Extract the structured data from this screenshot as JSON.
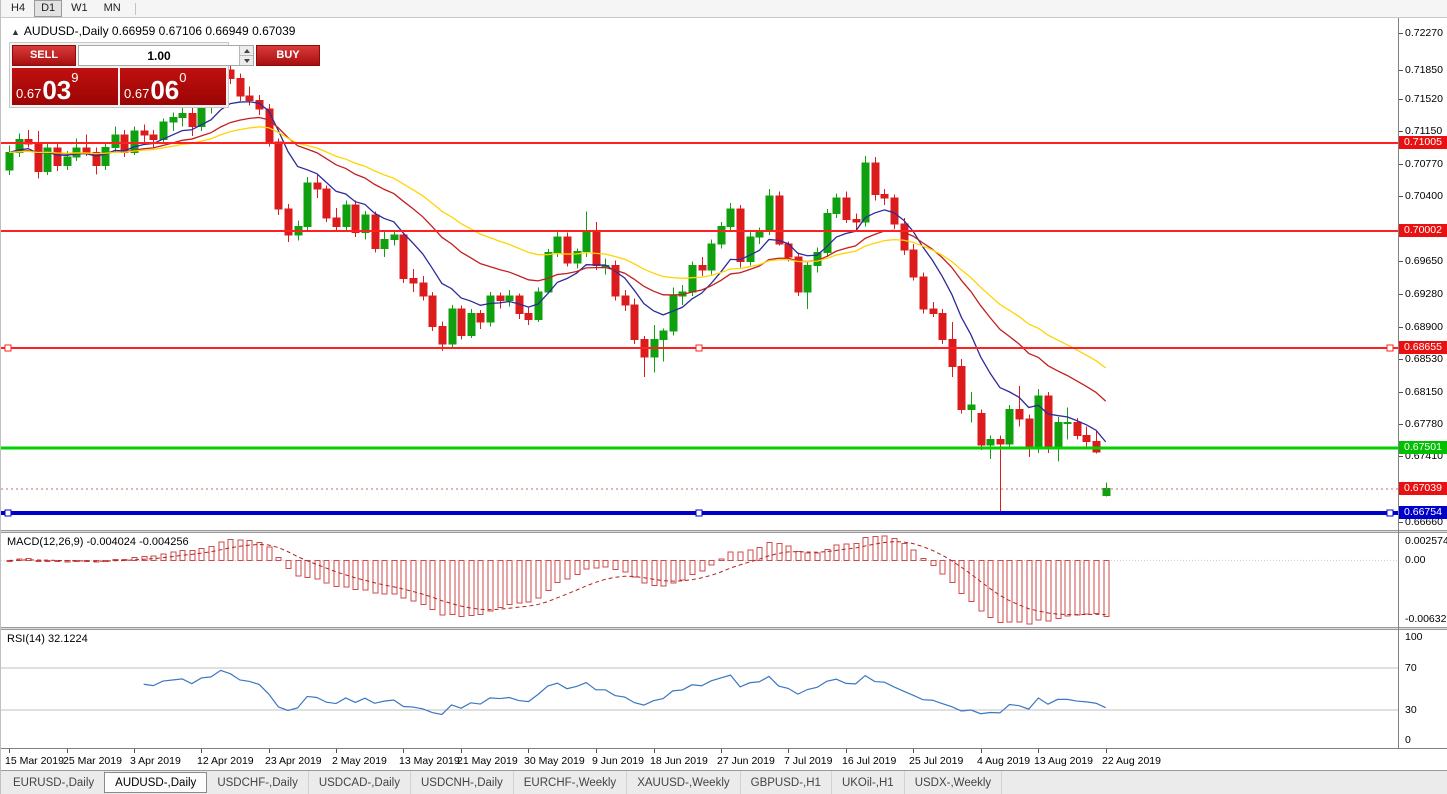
{
  "toolbar": {
    "buttons": [
      "H4",
      "D1",
      "W1",
      "MN"
    ],
    "active": "D1"
  },
  "chart": {
    "collapse_arrow": "▲",
    "title": "AUDUSD-,Daily 0.66959 0.67106 0.66949 0.67039"
  },
  "trade_panel": {
    "sell_label": "SELL",
    "buy_label": "BUY",
    "volume": "1.00",
    "sell_price": {
      "small": "0.67",
      "big": "03",
      "sup": "9"
    },
    "buy_price": {
      "small": "0.67",
      "big": "06",
      "sup": "0"
    }
  },
  "colors": {
    "bull": "#0fa00f",
    "bear": "#dc1c1c",
    "ma_fast": "#2b2b9c",
    "ma_mid": "#c22020",
    "ma_slow": "#ffd400",
    "macd_hist": "#cf4a4a",
    "macd_signal": "#b22222",
    "rsi_line": "#3b77c2",
    "badge_red": "#e81010",
    "badge_green": "#00c000",
    "badge_blue": "#0000cc"
  },
  "price_axis": {
    "labels": [
      {
        "text": "0.72270",
        "price": 0.7227
      },
      {
        "text": "0.71850",
        "price": 0.7185
      },
      {
        "text": "0.71520",
        "price": 0.7152
      },
      {
        "text": "0.71150",
        "price": 0.7115
      },
      {
        "text": "0.70770",
        "price": 0.7077
      },
      {
        "text": "0.70400",
        "price": 0.704
      },
      {
        "text": "0.69650",
        "price": 0.6965
      },
      {
        "text": "0.69280",
        "price": 0.6928
      },
      {
        "text": "0.68900",
        "price": 0.689
      },
      {
        "text": "0.68530",
        "price": 0.6853
      },
      {
        "text": "0.68150",
        "price": 0.6815
      },
      {
        "text": "0.67780",
        "price": 0.6778
      },
      {
        "text": "0.67410",
        "price": 0.6741
      },
      {
        "text": "0.66660",
        "price": 0.6666
      }
    ],
    "badges": [
      {
        "text": "0.71005",
        "price": 0.71005,
        "color": "#e81010"
      },
      {
        "text": "0.70002",
        "price": 0.70002,
        "color": "#e81010"
      },
      {
        "text": "0.68655",
        "price": 0.68655,
        "color": "#e81010"
      },
      {
        "text": "0.67501",
        "price": 0.67501,
        "color": "#00c000"
      },
      {
        "text": "0.67039",
        "price": 0.67039,
        "color": "#e81010"
      },
      {
        "text": "0.66754",
        "price": 0.66754,
        "color": "#0000cc"
      }
    ]
  },
  "hlines": [
    {
      "price": 0.71005,
      "color": "#ff2020",
      "width": 2,
      "selected": false
    },
    {
      "price": 0.70002,
      "color": "#ff2020",
      "width": 2,
      "selected": false
    },
    {
      "price": 0.68655,
      "color": "#ff2020",
      "width": 2,
      "selected": true
    },
    {
      "price": 0.67501,
      "color": "#00d200",
      "width": 3,
      "selected": false
    },
    {
      "price": 0.66754,
      "color": "#0000c8",
      "width": 4,
      "selected": true
    }
  ],
  "current_price": 0.67039,
  "macd": {
    "label": "MACD(12,26,9)",
    "values": "-0.004024 -0.004256",
    "scale": {
      "max": "0.002574",
      "zero": "0.00",
      "min": "-0.006326"
    }
  },
  "rsi": {
    "label": "RSI(14)",
    "value": "32.1224",
    "levels": [
      "100",
      "70",
      "30",
      "0"
    ],
    "level_lines": [
      70,
      30
    ]
  },
  "tabs": [
    {
      "label": "EURUSD-,Daily",
      "active": false
    },
    {
      "label": "AUDUSD-,Daily",
      "active": true
    },
    {
      "label": "USDCHF-,Daily",
      "active": false
    },
    {
      "label": "USDCAD-,Daily",
      "active": false
    },
    {
      "label": "USDCNH-,Daily",
      "active": false
    },
    {
      "label": "EURCHF-,Weekly",
      "active": false
    },
    {
      "label": "XAUUSD-,Weekly",
      "active": false
    },
    {
      "label": "GBPUSD-,H1",
      "active": false
    },
    {
      "label": "UKOil-,H1",
      "active": false
    },
    {
      "label": "USDX-,Weekly",
      "active": false
    }
  ],
  "chart_data": {
    "type": "candlestick",
    "symbol": "AUDUSD-",
    "timeframe": "Daily",
    "y_range": [
      0.6662,
      0.724
    ],
    "moving_averages": [
      {
        "type": "ema",
        "period": 9,
        "color": "#2b2b9c"
      },
      {
        "type": "ema",
        "period": 21,
        "color": "#c22020"
      },
      {
        "type": "ema",
        "period": 34,
        "color": "#ffd400"
      }
    ],
    "x_labels": [
      {
        "text": "15 Mar 2019",
        "i": 0
      },
      {
        "text": "25 Mar 2019",
        "i": 6
      },
      {
        "text": "3 Apr 2019",
        "i": 13
      },
      {
        "text": "12 Apr 2019",
        "i": 20
      },
      {
        "text": "23 Apr 2019",
        "i": 27
      },
      {
        "text": "2 May 2019",
        "i": 34
      },
      {
        "text": "13 May 2019",
        "i": 41
      },
      {
        "text": "21 May 2019",
        "i": 47
      },
      {
        "text": "30 May 2019",
        "i": 54
      },
      {
        "text": "9 Jun 2019",
        "i": 61
      },
      {
        "text": "18 Jun 2019",
        "i": 67
      },
      {
        "text": "27 Jun 2019",
        "i": 74
      },
      {
        "text": "7 Jul 2019",
        "i": 81
      },
      {
        "text": "16 Jul 2019",
        "i": 87
      },
      {
        "text": "25 Jul 2019",
        "i": 94
      },
      {
        "text": "4 Aug 2019",
        "i": 101
      },
      {
        "text": "13 Aug 2019",
        "i": 107
      },
      {
        "text": "22 Aug 2019",
        "i": 114
      }
    ],
    "candles": [
      [
        0.707,
        0.7098,
        0.7064,
        0.709
      ],
      [
        0.709,
        0.7112,
        0.7085,
        0.7105
      ],
      [
        0.7105,
        0.7116,
        0.7096,
        0.71
      ],
      [
        0.71,
        0.7115,
        0.706,
        0.7068
      ],
      [
        0.7068,
        0.71,
        0.7064,
        0.7095
      ],
      [
        0.7095,
        0.7101,
        0.7069,
        0.7075
      ],
      [
        0.7075,
        0.7092,
        0.707,
        0.7085
      ],
      [
        0.7085,
        0.7106,
        0.708,
        0.7095
      ],
      [
        0.7095,
        0.7111,
        0.7086,
        0.709
      ],
      [
        0.709,
        0.7096,
        0.7065,
        0.7075
      ],
      [
        0.7075,
        0.7101,
        0.707,
        0.7096
      ],
      [
        0.7096,
        0.712,
        0.709,
        0.711
      ],
      [
        0.711,
        0.7116,
        0.7085,
        0.709
      ],
      [
        0.709,
        0.712,
        0.7087,
        0.7115
      ],
      [
        0.7115,
        0.7122,
        0.71,
        0.711
      ],
      [
        0.711,
        0.7116,
        0.7095,
        0.7105
      ],
      [
        0.7105,
        0.7129,
        0.71,
        0.7125
      ],
      [
        0.7125,
        0.7136,
        0.7115,
        0.713
      ],
      [
        0.713,
        0.7141,
        0.712,
        0.7135
      ],
      [
        0.7135,
        0.7142,
        0.7109,
        0.712
      ],
      [
        0.712,
        0.715,
        0.7115,
        0.7145
      ],
      [
        0.7145,
        0.7156,
        0.7135,
        0.715
      ],
      [
        0.715,
        0.719,
        0.7145,
        0.7185
      ],
      [
        0.7185,
        0.7206,
        0.7169,
        0.7175
      ],
      [
        0.7175,
        0.7181,
        0.7149,
        0.7155
      ],
      [
        0.7155,
        0.7166,
        0.7144,
        0.715
      ],
      [
        0.715,
        0.7156,
        0.7133,
        0.714
      ],
      [
        0.714,
        0.7146,
        0.7097,
        0.7102
      ],
      [
        0.7102,
        0.7106,
        0.7018,
        0.7025
      ],
      [
        0.7025,
        0.7031,
        0.6987,
        0.6995
      ],
      [
        0.6995,
        0.7012,
        0.6989,
        0.7005
      ],
      [
        0.7005,
        0.7062,
        0.7,
        0.7055
      ],
      [
        0.7055,
        0.7064,
        0.7038,
        0.7048
      ],
      [
        0.7048,
        0.7052,
        0.701,
        0.7015
      ],
      [
        0.7015,
        0.7026,
        0.7,
        0.7005
      ],
      [
        0.7005,
        0.7035,
        0.7,
        0.703
      ],
      [
        0.703,
        0.7035,
        0.6993,
        0.6998
      ],
      [
        0.6998,
        0.7023,
        0.699,
        0.7018
      ],
      [
        0.7018,
        0.7022,
        0.6975,
        0.698
      ],
      [
        0.698,
        0.6999,
        0.697,
        0.699
      ],
      [
        0.699,
        0.7,
        0.6983,
        0.6995
      ],
      [
        0.6995,
        0.6998,
        0.694,
        0.6945
      ],
      [
        0.6945,
        0.6956,
        0.693,
        0.694
      ],
      [
        0.694,
        0.6948,
        0.692,
        0.6925
      ],
      [
        0.6925,
        0.693,
        0.6885,
        0.689
      ],
      [
        0.689,
        0.6896,
        0.6862,
        0.687
      ],
      [
        0.687,
        0.6915,
        0.6865,
        0.691
      ],
      [
        0.691,
        0.6914,
        0.6875,
        0.688
      ],
      [
        0.688,
        0.691,
        0.6877,
        0.6905
      ],
      [
        0.6905,
        0.6909,
        0.6887,
        0.6895
      ],
      [
        0.6895,
        0.693,
        0.689,
        0.6925
      ],
      [
        0.6925,
        0.6929,
        0.6911,
        0.692
      ],
      [
        0.692,
        0.6932,
        0.6913,
        0.6925
      ],
      [
        0.6925,
        0.6928,
        0.6899,
        0.6905
      ],
      [
        0.6905,
        0.6912,
        0.6892,
        0.6898
      ],
      [
        0.6898,
        0.6935,
        0.6895,
        0.693
      ],
      [
        0.693,
        0.6979,
        0.6928,
        0.6975
      ],
      [
        0.6975,
        0.7,
        0.697,
        0.6993
      ],
      [
        0.6993,
        0.6998,
        0.6959,
        0.6963
      ],
      [
        0.6963,
        0.698,
        0.6957,
        0.6976
      ],
      [
        0.6976,
        0.7022,
        0.697,
        0.7
      ],
      [
        0.7,
        0.701,
        0.6955,
        0.696
      ],
      [
        0.696,
        0.6968,
        0.695,
        0.696
      ],
      [
        0.696,
        0.6966,
        0.692,
        0.6925
      ],
      [
        0.6925,
        0.6932,
        0.6908,
        0.6915
      ],
      [
        0.6915,
        0.6922,
        0.687,
        0.6875
      ],
      [
        0.6875,
        0.6879,
        0.6832,
        0.6855
      ],
      [
        0.6855,
        0.6892,
        0.6837,
        0.6875
      ],
      [
        0.6875,
        0.6888,
        0.685,
        0.6885
      ],
      [
        0.6885,
        0.6935,
        0.688,
        0.6925
      ],
      [
        0.6925,
        0.6938,
        0.6915,
        0.693
      ],
      [
        0.693,
        0.6965,
        0.6925,
        0.696
      ],
      [
        0.696,
        0.697,
        0.6948,
        0.6955
      ],
      [
        0.6955,
        0.699,
        0.695,
        0.6985
      ],
      [
        0.6985,
        0.701,
        0.698,
        0.7005
      ],
      [
        0.7005,
        0.7032,
        0.7,
        0.7025
      ],
      [
        0.7025,
        0.703,
        0.6958,
        0.6965
      ],
      [
        0.6965,
        0.6999,
        0.696,
        0.6993
      ],
      [
        0.6993,
        0.7004,
        0.6985,
        0.7
      ],
      [
        0.7,
        0.7048,
        0.6995,
        0.704
      ],
      [
        0.704,
        0.7045,
        0.6983,
        0.6985
      ],
      [
        0.6985,
        0.6988,
        0.6965,
        0.697
      ],
      [
        0.697,
        0.6975,
        0.6925,
        0.693
      ],
      [
        0.693,
        0.6965,
        0.691,
        0.696
      ],
      [
        0.696,
        0.6981,
        0.6952,
        0.6975
      ],
      [
        0.6975,
        0.7025,
        0.697,
        0.702
      ],
      [
        0.702,
        0.7043,
        0.7015,
        0.7038
      ],
      [
        0.7038,
        0.7045,
        0.7009,
        0.7013
      ],
      [
        0.7013,
        0.702,
        0.7,
        0.701
      ],
      [
        0.701,
        0.7086,
        0.7005,
        0.7078
      ],
      [
        0.7078,
        0.7085,
        0.7035,
        0.7042
      ],
      [
        0.7042,
        0.7048,
        0.703,
        0.7038
      ],
      [
        0.7038,
        0.7042,
        0.7002,
        0.7008
      ],
      [
        0.7008,
        0.7015,
        0.6972,
        0.6978
      ],
      [
        0.6978,
        0.6985,
        0.6943,
        0.6947
      ],
      [
        0.6947,
        0.6952,
        0.6905,
        0.691
      ],
      [
        0.691,
        0.6918,
        0.6901,
        0.6905
      ],
      [
        0.6905,
        0.691,
        0.687,
        0.6875
      ],
      [
        0.6875,
        0.6895,
        0.6832,
        0.6844
      ],
      [
        0.6844,
        0.6853,
        0.679,
        0.6795
      ],
      [
        0.6795,
        0.6815,
        0.678,
        0.68
      ],
      [
        0.679,
        0.6795,
        0.6748,
        0.6754
      ],
      [
        0.6754,
        0.6765,
        0.6738,
        0.676
      ],
      [
        0.676,
        0.6765,
        0.6677,
        0.6755
      ],
      [
        0.6755,
        0.68,
        0.675,
        0.6795
      ],
      [
        0.6795,
        0.6822,
        0.6775,
        0.6784
      ],
      [
        0.6784,
        0.6789,
        0.674,
        0.675
      ],
      [
        0.675,
        0.6818,
        0.6745,
        0.681
      ],
      [
        0.681,
        0.6815,
        0.6745,
        0.675
      ],
      [
        0.675,
        0.6786,
        0.6735,
        0.678
      ],
      [
        0.678,
        0.6797,
        0.676,
        0.678
      ],
      [
        0.678,
        0.6785,
        0.676,
        0.6765
      ],
      [
        0.6765,
        0.6775,
        0.6752,
        0.6758
      ],
      [
        0.6758,
        0.677,
        0.6744,
        0.6746
      ],
      [
        0.66959,
        0.67106,
        0.66949,
        0.67039
      ]
    ]
  }
}
